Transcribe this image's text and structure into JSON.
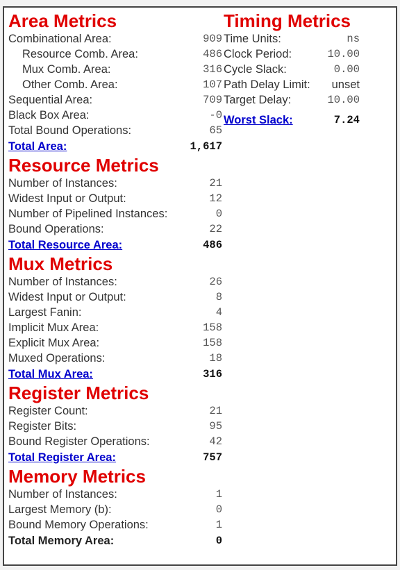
{
  "area": {
    "title": "Area Metrics",
    "rows": [
      {
        "label": "Combinational Area:",
        "value": "909"
      },
      {
        "label": "Resource Comb. Area:",
        "value": "486"
      },
      {
        "label": "Mux Comb. Area:",
        "value": "316"
      },
      {
        "label": "Other Comb. Area:",
        "value": "107"
      },
      {
        "label": "Sequential Area:",
        "value": "709"
      },
      {
        "label": "Black Box Area:",
        "value": "-0"
      },
      {
        "label": "Total Bound Operations:",
        "value": "65"
      }
    ],
    "total_label": "Total Area:",
    "total_value": "1,617"
  },
  "resource": {
    "title": "Resource Metrics",
    "rows": [
      {
        "label": "Number of Instances:",
        "value": "21"
      },
      {
        "label": "Widest Input or Output:",
        "value": "12"
      },
      {
        "label": "Number of Pipelined Instances:",
        "value": "0"
      },
      {
        "label": "Bound Operations:",
        "value": "22"
      }
    ],
    "total_label": "Total Resource Area:",
    "total_value": "486"
  },
  "mux": {
    "title": "Mux Metrics",
    "rows": [
      {
        "label": "Number of Instances:",
        "value": "26"
      },
      {
        "label": "Widest Input or Output:",
        "value": "8"
      },
      {
        "label": "Largest Fanin:",
        "value": "4"
      },
      {
        "label": "Implicit Mux Area:",
        "value": "158"
      },
      {
        "label": "Explicit Mux Area:",
        "value": "158"
      },
      {
        "label": "Muxed Operations:",
        "value": "18"
      }
    ],
    "total_label": "Total Mux Area:",
    "total_value": "316"
  },
  "register": {
    "title": "Register Metrics",
    "rows": [
      {
        "label": "Register Count:",
        "value": "21"
      },
      {
        "label": "Register Bits:",
        "value": "95"
      },
      {
        "label": "Bound Register Operations:",
        "value": "42"
      }
    ],
    "total_label": "Total Register Area:",
    "total_value": "757"
  },
  "memory": {
    "title": "Memory Metrics",
    "rows": [
      {
        "label": "Number of Instances:",
        "value": "1"
      },
      {
        "label": "Largest Memory (b):",
        "value": "0"
      },
      {
        "label": "Bound Memory Operations:",
        "value": "1"
      }
    ],
    "total_label": "Total Memory Area:",
    "total_value": "0"
  },
  "timing": {
    "title": "Timing Metrics",
    "rows": [
      {
        "label": "Time Units:",
        "value": "ns"
      },
      {
        "label": "Clock Period:",
        "value": "10.00"
      },
      {
        "label": "Cycle Slack:",
        "value": "0.00"
      },
      {
        "label": "Path Delay Limit:",
        "value": "unset"
      },
      {
        "label": "Target Delay:",
        "value": "10.00"
      }
    ],
    "total_label": "Worst Slack:",
    "total_value": "7.24"
  },
  "colors": {
    "title_red": "#e00000",
    "link_blue": "#0000cc"
  }
}
